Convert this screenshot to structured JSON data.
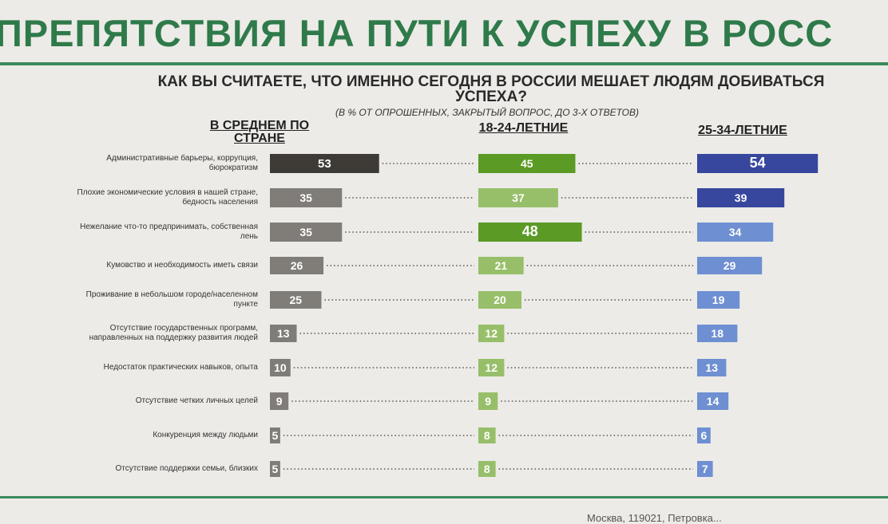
{
  "slide": {
    "title": "ПРЕПЯТСТВИЯ НА ПУТИ К УСПЕХУ В РОСС",
    "question_line1": "КАК ВЫ СЧИТАЕТЕ, ЧТО ИМЕННО СЕГОДНЯ В РОССИИ МЕШАЕТ ЛЮДЯМ ДОБИВАТЬСЯ",
    "question_line2": "УСПЕХА?",
    "subtitle": "(В % ОТ ОПРОШЕННЫХ, ЗАКРЫТЫЙ ВОПРОС, ДО 3-Х ОТВЕТОВ)",
    "footer": "Москва, 119021, Петровка..."
  },
  "chart_data": {
    "type": "bar",
    "orientation": "horizontal",
    "categories": [
      "Административные барьеры, коррупция, бюрократизм",
      "Плохие экономические условия в нашей стране, бедность населения",
      "Нежелание что-то предпринимать, собственная лень",
      "Кумовство и необходимость иметь связи",
      "Проживание в небольшом городе/населенном пункте",
      "Отсутствие государственных программ, направленных на поддержку развития людей",
      "Недостаток практических навыков, опыта",
      "Отсутствие четких личных целей",
      "Конкуренция между людьми",
      "Отсутствие поддержки семьи, близких"
    ],
    "series": [
      {
        "name": "В СРЕДНЕМ ПО СТРАНЕ",
        "values": [
          53,
          35,
          35,
          26,
          25,
          13,
          10,
          9,
          5,
          5
        ],
        "colors": [
          "#3e3b36",
          "#807d79",
          "#807d79",
          "#807d79",
          "#807d79",
          "#807d79",
          "#807d79",
          "#807d79",
          "#807d79",
          "#807d79"
        ]
      },
      {
        "name": "18-24-ЛЕТНИЕ",
        "values": [
          45,
          37,
          48,
          21,
          20,
          12,
          12,
          9,
          8,
          8
        ],
        "colors": [
          "#5a9a25",
          "#97bf69",
          "#5a9a25",
          "#97bf69",
          "#97bf69",
          "#97bf69",
          "#97bf69",
          "#97bf69",
          "#97bf69",
          "#97bf69"
        ]
      },
      {
        "name": "25-34-ЛЕТНИЕ",
        "values": [
          54,
          39,
          34,
          29,
          19,
          18,
          13,
          14,
          6,
          7
        ],
        "colors": [
          "#37479e",
          "#37479e",
          "#6e8fd2",
          "#6e8fd2",
          "#6e8fd2",
          "#6e8fd2",
          "#6e8fd2",
          "#6e8fd2",
          "#6e8fd2",
          "#6e8fd2"
        ]
      }
    ],
    "label_color": "#ffffff"
  }
}
